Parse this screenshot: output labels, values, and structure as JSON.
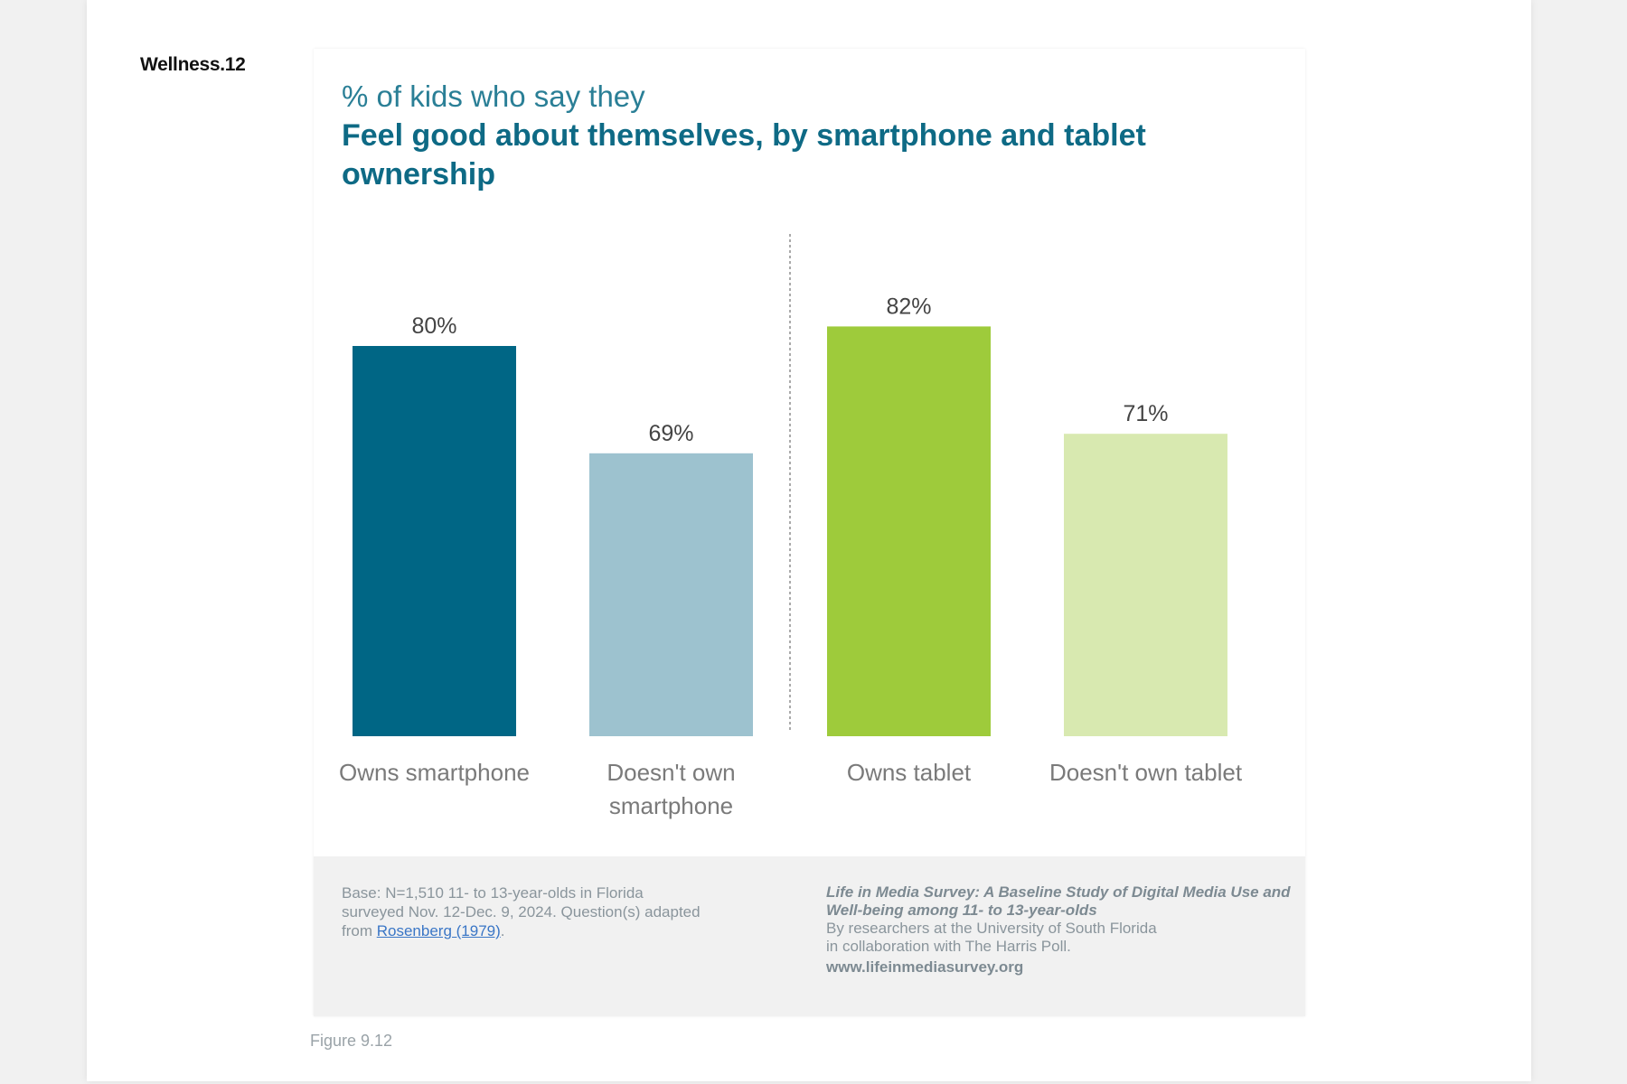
{
  "tag": "Wellness.12",
  "figure_label": "Figure 9.12",
  "chart_data": {
    "type": "bar",
    "subtitle": "% of kids who say they",
    "title": "Feel good about themselves,  by smartphone and tablet ownership",
    "categories": [
      [
        "Owns smartphone"
      ],
      [
        "Doesn't own",
        "smartphone"
      ],
      [
        "Owns tablet"
      ],
      [
        "Doesn't own tablet"
      ]
    ],
    "values": [
      80,
      69,
      82,
      71
    ],
    "value_labels": [
      "80%",
      "69%",
      "82%",
      "71%"
    ],
    "colors": [
      "#006685",
      "#9dc2cf",
      "#9ecb3b",
      "#d8e9b0"
    ],
    "groups": [
      "smartphone",
      "tablet"
    ],
    "ylim": [
      40,
      90
    ],
    "grid": false,
    "group_divider": "dotted"
  },
  "footer": {
    "base_text": "Base: N=1,510 11- to 13-year-olds in Florida surveyed Nov. 12-Dec. 9, 2024. Question(s) adapted from ",
    "base_link": "Rosenberg (1979)",
    "base_end": ".",
    "source_title": "Life in Media Survey: A Baseline Study of Digital Media Use and Well-being among 11- to 13-year-olds",
    "source_line1": "By researchers  at the University of South Florida",
    "source_line2": "in collaboration with The Harris Poll.",
    "source_url": "www.lifeinmediasurvey.org"
  }
}
